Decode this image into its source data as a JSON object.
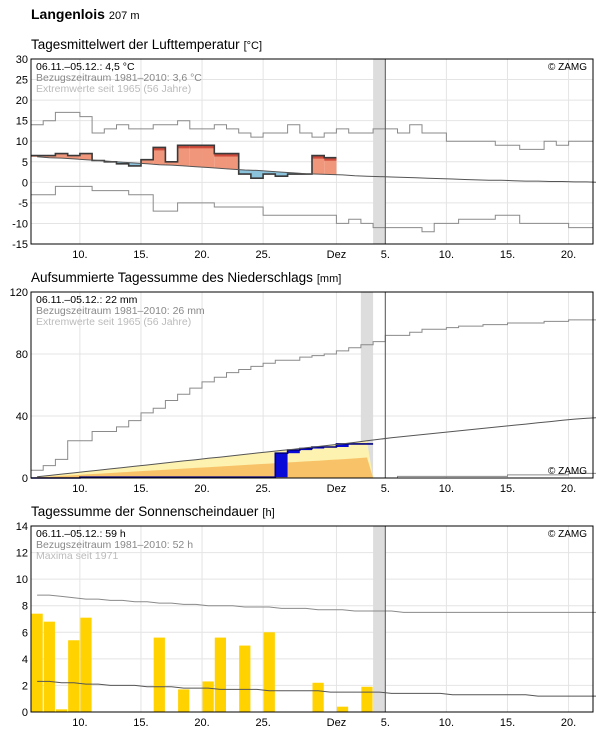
{
  "station": {
    "name": "Langenlois",
    "elevation": "207 m"
  },
  "brand": "© ZAMG",
  "x_ticks": [
    {
      "day": 4,
      "label": "10."
    },
    {
      "day": 9,
      "label": "15."
    },
    {
      "day": 14,
      "label": "20."
    },
    {
      "day": 19,
      "label": "25."
    },
    {
      "day": 25,
      "label": "Dez"
    },
    {
      "day": 29,
      "label": "5."
    },
    {
      "day": 34,
      "label": "10."
    },
    {
      "day": 39,
      "label": "15."
    },
    {
      "day": 44,
      "label": "20."
    }
  ],
  "chart_data": [
    {
      "type": "line",
      "title": "Tagesmittelwert der Lufttemperatur",
      "unit": "[°C]",
      "info": [
        "06.11.–05.12.: 4,5 °C",
        "Bezugszeitraum 1981–2010: 3,6 °C",
        "Extremwerte seit 1965 (56 Jahre)"
      ],
      "x_start_label": "06.11.",
      "today_day": 29,
      "shade_days": [
        28,
        29
      ],
      "ylim": [
        -15,
        30
      ],
      "yticks": [
        -15,
        -10,
        -5,
        0,
        5,
        10,
        15,
        20,
        25,
        30
      ],
      "series": [
        {
          "role": "observed",
          "values": [
            6.5,
            6.5,
            7,
            6.5,
            7,
            5.3,
            5,
            4.5,
            4,
            5.5,
            8.5,
            5,
            9,
            9,
            9,
            7,
            7,
            2,
            1,
            2,
            1.5,
            2,
            2,
            6.5,
            6
          ]
        },
        {
          "role": "normal",
          "values": [
            6.2,
            6,
            5.9,
            5.7,
            5.5,
            5.3,
            5.1,
            4.9,
            4.7,
            4.5,
            4.3,
            4.2,
            4.0,
            3.8,
            3.6,
            3.4,
            3.2,
            3.0,
            2.9,
            2.7,
            2.5,
            2.3,
            2.1,
            2.0,
            1.9,
            1.8,
            1.6,
            1.5,
            1.4,
            1.3,
            1.2,
            1.1,
            1.0,
            0.9,
            0.8,
            0.7,
            0.6,
            0.5,
            0.5,
            0.4,
            0.3,
            0.3,
            0.2,
            0.2,
            0.1,
            0.1,
            0.0
          ]
        },
        {
          "role": "max",
          "values": [
            14,
            15,
            17,
            17,
            16,
            12,
            13,
            14,
            13,
            13,
            14,
            14,
            15,
            13,
            13,
            14,
            13,
            12,
            11,
            12,
            12,
            14,
            12,
            11,
            12,
            13,
            12,
            12,
            13,
            13,
            12,
            14,
            12,
            12,
            10,
            10,
            10,
            10,
            9,
            9,
            8,
            8,
            10,
            9,
            10,
            10
          ]
        },
        {
          "role": "min",
          "values": [
            -3,
            -3,
            -1,
            -1,
            -1,
            -2,
            -2,
            -2,
            -3,
            -3,
            -7,
            -7,
            -5,
            -5,
            -5,
            -6,
            -6,
            -6,
            -6,
            -8,
            -8,
            -8,
            -8,
            -8,
            -8,
            -10,
            -9,
            -10,
            -11,
            -11,
            -11,
            -11,
            -12,
            -10,
            -10,
            -9,
            -9,
            -9,
            -8,
            -8,
            -10,
            -10,
            -10,
            -10,
            -11,
            -11
          ]
        }
      ]
    },
    {
      "type": "area",
      "title": "Aufsummierte Tagessumme des Niederschlags",
      "unit": "[mm]",
      "info": [
        "06.11.–05.12.: 22 mm",
        "Bezugszeitraum 1981–2010: 26 mm",
        "Extremwerte seit 1965 (56 Jahre)"
      ],
      "today_day": 29,
      "shade_days": [
        27,
        28
      ],
      "ylim": [
        0,
        120
      ],
      "yticks": [
        0,
        40,
        80,
        120
      ],
      "series": [
        {
          "role": "observed",
          "values": [
            0,
            0,
            0,
            0,
            0.5,
            0.5,
            0.5,
            0.5,
            0.5,
            0.5,
            0.5,
            0.5,
            0.5,
            0.5,
            0.5,
            0.5,
            0.5,
            0.5,
            0.5,
            0.5,
            16,
            18,
            19,
            20,
            20,
            22,
            22,
            22
          ]
        },
        {
          "role": "normal",
          "values": [
            0.8,
            1.6,
            2.5,
            3.3,
            4.2,
            5.0,
            5.9,
            6.7,
            7.6,
            8.4,
            9.3,
            10.1,
            11.0,
            11.8,
            12.7,
            13.5,
            14.4,
            15.2,
            16.1,
            16.9,
            17.8,
            18.6,
            19.5,
            20.3,
            21.2,
            22.0,
            23.0,
            24.0,
            25.0,
            26.0,
            26.8,
            27.6,
            28.4,
            29.2,
            30.0,
            30.8,
            31.6,
            32.4,
            33.2,
            34.0,
            34.8,
            35.6,
            36.4,
            37.2,
            38.0,
            38.5,
            39.0
          ]
        },
        {
          "role": "max",
          "values": [
            5,
            8,
            12,
            24,
            24,
            30,
            30,
            33,
            37,
            42,
            45,
            50,
            54,
            58,
            62,
            65,
            68,
            70,
            72,
            74,
            76,
            76,
            78,
            79,
            80,
            82,
            84,
            86,
            88,
            92,
            92,
            94,
            96,
            96,
            97,
            98,
            98,
            99,
            99,
            100,
            100,
            100,
            101,
            101,
            102,
            102,
            102
          ]
        },
        {
          "role": "min",
          "values": [
            0,
            0,
            0,
            0,
            0,
            0,
            0,
            0,
            0,
            0,
            0,
            0,
            0,
            0,
            0,
            0,
            0,
            0,
            0,
            0,
            0,
            0,
            0,
            0,
            0,
            0,
            0,
            0,
            0,
            0,
            1,
            1,
            1,
            1,
            1,
            1,
            1,
            1,
            1,
            2,
            2,
            2,
            2,
            2,
            3,
            3,
            3
          ]
        }
      ]
    },
    {
      "type": "bar",
      "title": "Tagessumme der Sonnenscheindauer",
      "unit": "[h]",
      "info": [
        "06.11.–05.12.: 59 h",
        "Bezugszeitraum 1981–2010: 52 h",
        "Maxima seit 1971"
      ],
      "today_day": 29,
      "shade_days": [
        28,
        29
      ],
      "ylim": [
        0,
        14
      ],
      "yticks": [
        0,
        2,
        4,
        6,
        8,
        10,
        12,
        14
      ],
      "series": [
        {
          "role": "observed",
          "values": [
            7.4,
            6.8,
            0.2,
            5.4,
            7.1,
            0,
            0,
            0,
            0,
            0,
            5.6,
            0,
            1.7,
            0,
            2.3,
            5.6,
            0,
            5.0,
            0,
            6.0,
            0,
            0,
            0,
            2.2,
            0,
            0.4,
            0,
            1.9
          ]
        },
        {
          "role": "normal",
          "values": [
            2.3,
            2.3,
            2.2,
            2.2,
            2.1,
            2.1,
            2.0,
            2.0,
            2.0,
            1.9,
            1.9,
            1.9,
            1.8,
            1.8,
            1.8,
            1.7,
            1.7,
            1.7,
            1.7,
            1.6,
            1.6,
            1.6,
            1.6,
            1.6,
            1.5,
            1.5,
            1.5,
            1.5,
            1.5,
            1.4,
            1.4,
            1.4,
            1.4,
            1.4,
            1.3,
            1.3,
            1.3,
            1.3,
            1.3,
            1.3,
            1.3,
            1.2,
            1.2,
            1.2,
            1.2,
            1.2,
            1.2
          ]
        },
        {
          "role": "max",
          "values": [
            8.8,
            8.8,
            8.7,
            8.6,
            8.5,
            8.5,
            8.4,
            8.4,
            8.3,
            8.3,
            8.2,
            8.2,
            8.1,
            8.1,
            8.0,
            8.0,
            8.0,
            7.9,
            7.9,
            7.9,
            7.8,
            7.8,
            7.8,
            7.7,
            7.7,
            7.7,
            7.6,
            7.6,
            7.6,
            7.6,
            7.5,
            7.5,
            7.5,
            7.5,
            7.5,
            7.5,
            7.5,
            7.5,
            7.5,
            7.5,
            7.5,
            7.5,
            7.5,
            7.5,
            7.5,
            7.5,
            7.5
          ]
        }
      ]
    }
  ]
}
